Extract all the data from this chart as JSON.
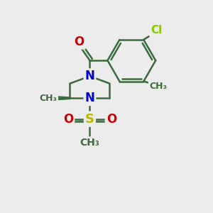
{
  "background_color": "#ececec",
  "bond_color": "#3a6b3a",
  "bond_width": 1.8,
  "atom_colors": {
    "C": "#3a6b3a",
    "N": "#0000cc",
    "O": "#cc0000",
    "S": "#bbbb00",
    "Cl": "#88cc00"
  },
  "figsize": [
    3.0,
    3.0
  ],
  "dpi": 100,
  "xlim": [
    0,
    10
  ],
  "ylim": [
    0,
    10
  ]
}
